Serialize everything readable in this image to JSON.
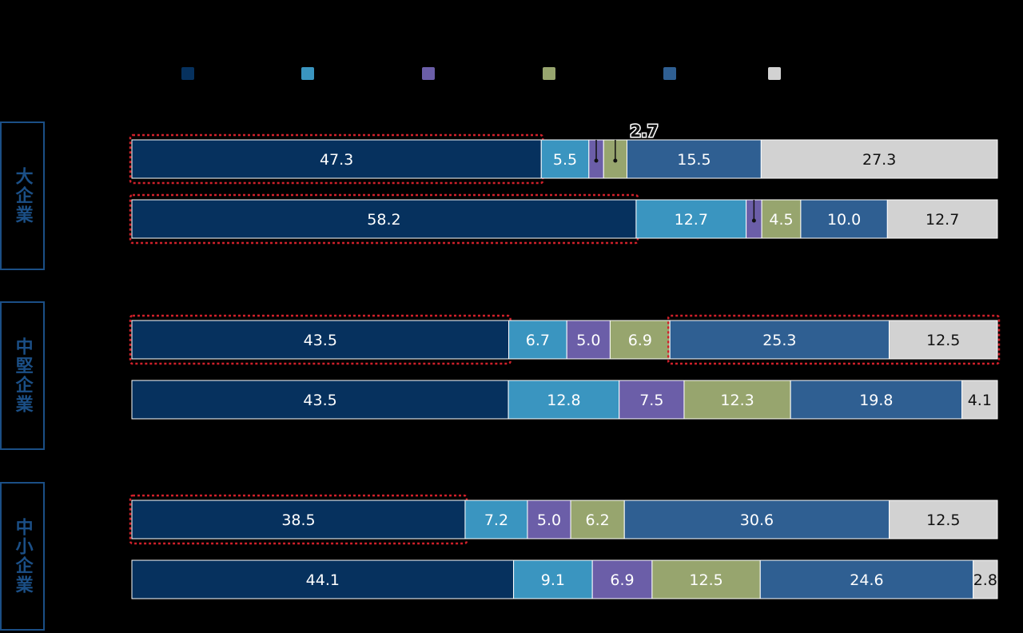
{
  "groups": [
    {
      "label": "大企業"
    },
    {
      "label": "中堅企業"
    },
    {
      "label": "中小企業"
    }
  ],
  "legend_colors": [
    "#06315e",
    "#3a95c0",
    "#6b5ea8",
    "#97a56e",
    "#2f5f92",
    "#d2d2d2"
  ],
  "chart_data": {
    "type": "bar",
    "orientation": "horizontal",
    "stacked": true,
    "xlim": [
      0,
      100
    ],
    "categories": [
      "大企業-1",
      "大企業-2",
      "中堅企業-1",
      "中堅企業-2",
      "中小企業-1",
      "中小企業-2"
    ],
    "series": [
      {
        "color": "#06315e",
        "values": [
          47.3,
          58.2,
          43.5,
          43.5,
          38.5,
          44.1
        ]
      },
      {
        "color": "#3a95c0",
        "values": [
          5.5,
          12.7,
          6.7,
          12.8,
          7.2,
          9.1
        ]
      },
      {
        "color": "#6b5ea8",
        "values": [
          1.7,
          1.8,
          5.0,
          7.5,
          5.0,
          6.9
        ]
      },
      {
        "color": "#97a56e",
        "values": [
          2.7,
          4.5,
          6.9,
          12.3,
          6.2,
          12.5
        ]
      },
      {
        "color": "#2f5f92",
        "values": [
          15.5,
          10.0,
          25.3,
          19.8,
          30.6,
          24.6
        ]
      },
      {
        "color": "#d2d2d2",
        "values": [
          27.3,
          12.7,
          12.5,
          4.1,
          12.5,
          2.8
        ]
      }
    ],
    "labels": [
      [
        "47.3",
        "5.5",
        "",
        "",
        "15.5",
        "27.3"
      ],
      [
        "58.2",
        "12.7",
        "",
        "4.5",
        "10.0",
        "12.7"
      ],
      [
        "43.5",
        "6.7",
        "5.0",
        "6.9",
        "25.3",
        "12.5"
      ],
      [
        "43.5",
        "12.8",
        "7.5",
        "12.3",
        "19.8",
        "4.1"
      ],
      [
        "38.5",
        "7.2",
        "5.0",
        "6.2",
        "30.6",
        "12.5"
      ],
      [
        "44.1",
        "9.1",
        "6.9",
        "12.5",
        "24.6",
        "2.8"
      ]
    ],
    "callout_label": "2.7",
    "highlighted_segments": [
      [
        0,
        0
      ],
      [
        1,
        0
      ],
      [
        2,
        0
      ],
      [
        2,
        4
      ],
      [
        2,
        5
      ],
      [
        4,
        0
      ]
    ]
  }
}
